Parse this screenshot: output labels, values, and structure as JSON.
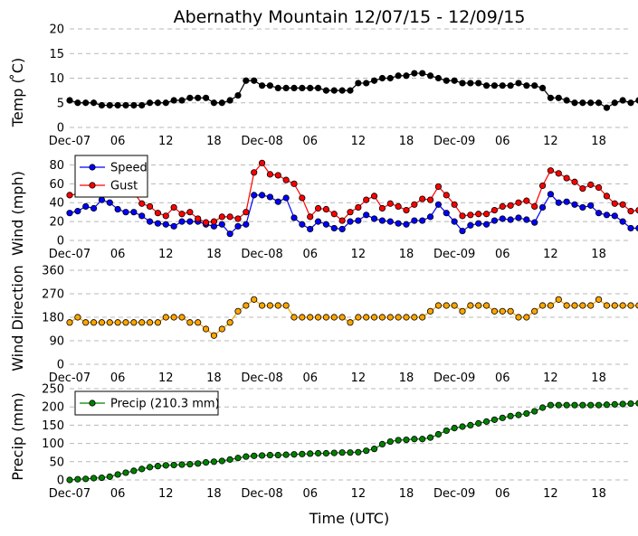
{
  "title": "Abernathy Mountain 12/07/15 - 12/09/15",
  "xlabel": "Time (UTC)",
  "colors": {
    "temp": "#000000",
    "speed": "#0000ff",
    "gust": "#ff0000",
    "direction": "#ffa500",
    "precip": "#008000"
  },
  "chart_data": [
    {
      "type": "line",
      "ylabel": "Temp ( ̊C)",
      "ylim": [
        0,
        20
      ],
      "yticks": [
        0,
        5,
        10,
        15,
        20
      ],
      "xlim": [
        0,
        70
      ],
      "xticks": [
        0,
        6,
        12,
        18,
        24,
        30,
        36,
        42,
        48,
        54,
        60,
        66
      ],
      "xticklabels": [
        "Dec-07",
        "06",
        "12",
        "18",
        "Dec-08",
        "06",
        "12",
        "18",
        "Dec-09",
        "06",
        "12",
        "18"
      ],
      "series": [
        {
          "name": "Temp",
          "color": "#000000",
          "x_start": 0,
          "x_step": 1,
          "values": [
            5.5,
            5,
            5,
            5,
            4.5,
            4.5,
            4.5,
            4.5,
            4.5,
            4.5,
            5,
            5,
            5,
            5.5,
            5.5,
            6,
            6,
            6,
            5,
            5,
            5.5,
            6.5,
            9.5,
            9.5,
            8.5,
            8.5,
            8,
            8,
            8,
            8,
            8,
            8,
            7.5,
            7.5,
            7.5,
            7.5,
            9,
            9,
            9.5,
            10,
            10,
            10.5,
            10.5,
            11,
            11,
            10.5,
            10,
            9.5,
            9.5,
            9,
            9,
            9,
            8.5,
            8.5,
            8.5,
            8.5,
            9,
            8.5,
            8.5,
            8,
            6,
            6,
            5.5,
            5,
            5,
            5,
            5,
            4,
            5,
            5.5,
            5,
            5.5,
            6
          ]
        }
      ]
    },
    {
      "type": "line",
      "ylabel": "Wind (mph)",
      "ylim": [
        0,
        90
      ],
      "yticks": [
        0,
        20,
        40,
        60,
        80
      ],
      "xlim": [
        0,
        70
      ],
      "xticks": [
        0,
        6,
        12,
        18,
        24,
        30,
        36,
        42,
        48,
        54,
        60,
        66
      ],
      "xticklabels": [
        "Dec-07",
        "06",
        "12",
        "18",
        "Dec-08",
        "06",
        "12",
        "18",
        "Dec-09",
        "06",
        "12",
        "18"
      ],
      "legend": "top-left",
      "series": [
        {
          "name": "Speed",
          "color": "#0000ff",
          "x_start": 0,
          "x_step": 1,
          "values": [
            29,
            31,
            36,
            34,
            43,
            40,
            33,
            30,
            30,
            26,
            20,
            18,
            17,
            15,
            20,
            20,
            20,
            17,
            15,
            17,
            7,
            15,
            17,
            48,
            48,
            46,
            41,
            45,
            24,
            17,
            12,
            20,
            17,
            13,
            12,
            20,
            21,
            27,
            23,
            21,
            20,
            18,
            17,
            21,
            21,
            25,
            38,
            29,
            20,
            10,
            16,
            18,
            17,
            21,
            23,
            22,
            24,
            22,
            19,
            35,
            49,
            40,
            41,
            38,
            35,
            37,
            29,
            27,
            26,
            20,
            13,
            13,
            13
          ]
        },
        {
          "name": "Gust",
          "color": "#ff0000",
          "x_start": 0,
          "x_step": 1,
          "values": [
            48,
            49,
            51,
            50,
            56,
            53,
            50,
            51,
            51,
            39,
            36,
            29,
            26,
            35,
            28,
            30,
            23,
            19,
            20,
            25,
            25,
            23,
            30,
            72,
            82,
            70,
            69,
            64,
            60,
            45,
            25,
            34,
            33,
            28,
            21,
            30,
            35,
            43,
            47,
            34,
            39,
            36,
            32,
            38,
            44,
            43,
            57,
            48,
            38,
            26,
            27,
            28,
            28,
            32,
            36,
            37,
            40,
            42,
            36,
            58,
            74,
            71,
            66,
            62,
            55,
            59,
            56,
            47,
            39,
            38,
            31,
            32,
            26
          ]
        }
      ]
    },
    {
      "type": "scatter",
      "ylabel": "Wind Direction",
      "ylim": [
        0,
        360
      ],
      "yticks": [
        0,
        90,
        180,
        270,
        360
      ],
      "xlim": [
        0,
        70
      ],
      "xticks": [
        0,
        6,
        12,
        18,
        24,
        30,
        36,
        42,
        48,
        54,
        60,
        66
      ],
      "xticklabels": [
        "Dec-07",
        "06",
        "12",
        "18",
        "Dec-08",
        "06",
        "12",
        "18",
        "Dec-09",
        "06",
        "12",
        "18"
      ],
      "series": [
        {
          "name": "Direction",
          "color": "#ffa500",
          "x_start": 0,
          "x_step": 1,
          "values": [
            160,
            180,
            160,
            160,
            160,
            160,
            160,
            160,
            160,
            160,
            160,
            160,
            180,
            180,
            180,
            160,
            160,
            135,
            110,
            135,
            160,
            203,
            225,
            248,
            225,
            225,
            225,
            225,
            180,
            180,
            180,
            180,
            180,
            180,
            180,
            160,
            180,
            180,
            180,
            180,
            180,
            180,
            180,
            180,
            180,
            203,
            225,
            225,
            225,
            203,
            225,
            225,
            225,
            203,
            203,
            203,
            180,
            180,
            203,
            225,
            225,
            248,
            225,
            225,
            225,
            225,
            248,
            225,
            225,
            225,
            225,
            225,
            203
          ]
        }
      ]
    },
    {
      "type": "line",
      "ylabel": "Precip (mm)",
      "ylim": [
        0,
        250
      ],
      "yticks": [
        0,
        50,
        100,
        150,
        200,
        250
      ],
      "xlim": [
        0,
        70
      ],
      "xticks": [
        0,
        6,
        12,
        18,
        24,
        30,
        36,
        42,
        48,
        54,
        60,
        66
      ],
      "xticklabels": [
        "Dec-07",
        "06",
        "12",
        "18",
        "Dec-08",
        "06",
        "12",
        "18",
        "Dec-09",
        "06",
        "12",
        "18"
      ],
      "legend": "top-left",
      "series": [
        {
          "name": "Precip (210.3 mm)",
          "color": "#008000",
          "x_start": 0,
          "x_step": 1,
          "values": [
            0,
            2,
            3,
            5,
            6,
            9,
            15,
            20,
            25,
            30,
            35,
            38,
            40,
            41,
            42,
            43,
            45,
            48,
            50,
            52,
            56,
            60,
            64,
            66,
            67,
            68,
            68,
            69,
            70,
            71,
            72,
            73,
            73,
            74,
            75,
            75,
            76,
            80,
            85,
            98,
            105,
            109,
            110,
            112,
            112,
            116,
            125,
            135,
            142,
            146,
            150,
            155,
            160,
            165,
            170,
            175,
            178,
            182,
            188,
            198,
            205,
            205,
            205,
            205,
            205,
            205,
            205,
            206,
            207,
            208,
            209,
            210,
            210
          ]
        }
      ]
    }
  ]
}
